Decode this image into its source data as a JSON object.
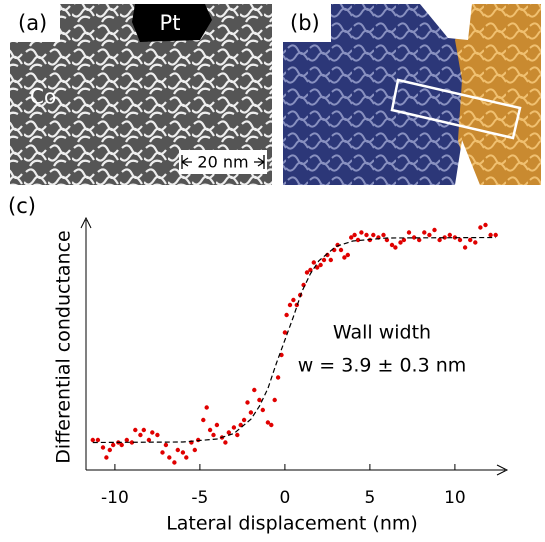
{
  "panels": {
    "a": {
      "label": "(a)",
      "region_top": "Pt",
      "region_left": "Co",
      "scale_bar": "20 nm"
    },
    "b": {
      "label": "(b)"
    }
  },
  "chart_data": {
    "type": "scatter",
    "label": "(c)",
    "x_label": "Lateral displacement (nm)",
    "y_label": "Differential conductance",
    "annotations": [
      "Wall width",
      "w = 3.9 ± 0.3 nm"
    ],
    "xlim": [
      -11.7,
      12.8
    ],
    "ylim": [
      0,
      1
    ],
    "xticks": [
      -10,
      -5,
      0,
      5,
      10
    ],
    "series": [
      {
        "color": "#e00000",
        "mode": "markers",
        "x": [
          -11.3,
          -11,
          -10.7,
          -10.5,
          -10.3,
          -10.1,
          -9.8,
          -9.6,
          -9.3,
          -9,
          -8.8,
          -8.5,
          -8.3,
          -8,
          -7.8,
          -7.5,
          -7.2,
          -7,
          -6.8,
          -6.5,
          -6.3,
          -6,
          -5.8,
          -5.5,
          -5.3,
          -5.1,
          -4.8,
          -4.6,
          -4.4,
          -4.2,
          -4,
          -3.7,
          -3.5,
          -3.3,
          -3,
          -2.8,
          -2.6,
          -2.4,
          -2.2,
          -2,
          -1.8,
          -1.5,
          -1.3,
          -1,
          -0.8,
          -0.6,
          -0.4,
          -0.2,
          0,
          0.1,
          0.3,
          0.5,
          0.7,
          0.9,
          1.1,
          1.3,
          1.5,
          1.7,
          1.9,
          2.1,
          2.3,
          2.5,
          2.7,
          2.9,
          3.1,
          3.3,
          3.5,
          3.7,
          3.9,
          4.1,
          4.3,
          4.5,
          4.8,
          5,
          5.2,
          5.5,
          5.8,
          6,
          6.3,
          6.5,
          6.8,
          7,
          7.3,
          7.6,
          7.9,
          8.2,
          8.5,
          8.8,
          9.1,
          9.4,
          9.7,
          10,
          10.3,
          10.6,
          10.9,
          11.2,
          11.5,
          11.8,
          12.1,
          12.4
        ],
        "values": [
          0.12,
          0.12,
          0.09,
          0.05,
          0.08,
          0.1,
          0.11,
          0.1,
          0.12,
          0.11,
          0.16,
          0.14,
          0.16,
          0.12,
          0.15,
          0.14,
          0.07,
          0.1,
          0.05,
          0.03,
          0.08,
          0.07,
          0.05,
          0.11,
          0.08,
          0.12,
          0.2,
          0.25,
          0.16,
          0.14,
          0.18,
          0.13,
          0.11,
          0.15,
          0.17,
          0.14,
          0.18,
          0.2,
          0.27,
          0.23,
          0.32,
          0.28,
          0.24,
          0.19,
          0.18,
          0.28,
          0.37,
          0.46,
          0.55,
          0.62,
          0.66,
          0.68,
          0.66,
          0.7,
          0.74,
          0.79,
          0.8,
          0.83,
          0.81,
          0.82,
          0.84,
          0.86,
          0.84,
          0.88,
          0.9,
          0.88,
          0.85,
          0.86,
          0.93,
          0.94,
          0.92,
          0.95,
          0.94,
          0.92,
          0.94,
          0.93,
          0.94,
          0.92,
          0.9,
          0.89,
          0.91,
          0.92,
          0.95,
          0.93,
          0.92,
          0.95,
          0.94,
          0.96,
          0.92,
          0.93,
          0.94,
          0.93,
          0.92,
          0.89,
          0.92,
          0.91,
          0.97,
          0.98,
          0.94,
          0.94
        ]
      },
      {
        "color": "#000000",
        "mode": "dashed-line",
        "x": [
          -11.3,
          -6,
          -4,
          -3,
          -2,
          -1.5,
          -1,
          -0.5,
          0,
          0.5,
          1,
          1.5,
          2,
          3,
          4,
          6,
          12.4
        ],
        "values": [
          0.11,
          0.112,
          0.124,
          0.146,
          0.203,
          0.255,
          0.326,
          0.427,
          0.52,
          0.613,
          0.714,
          0.785,
          0.837,
          0.894,
          0.916,
          0.928,
          0.93
        ]
      }
    ]
  }
}
